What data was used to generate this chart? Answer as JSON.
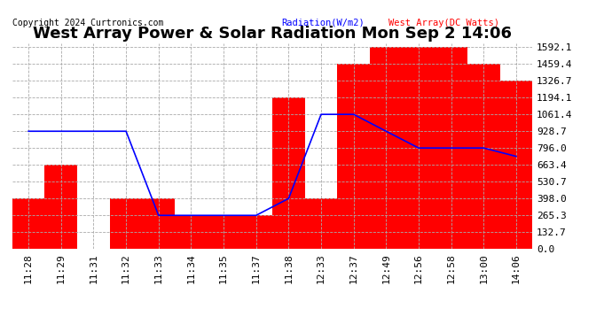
{
  "title": "West Array Power & Solar Radiation Mon Sep 2 14:06",
  "copyright": "Copyright 2024 Curtronics.com",
  "legend_radiation": "Radiation(W/m2)",
  "legend_west": "West Array(DC Watts)",
  "x_labels": [
    "11:28",
    "11:29",
    "11:31",
    "11:32",
    "11:33",
    "11:34",
    "11:35",
    "11:37",
    "11:38",
    "12:33",
    "12:37",
    "12:49",
    "12:56",
    "12:58",
    "13:00",
    "14:06"
  ],
  "bar_values": [
    398,
    663,
    0,
    398,
    398,
    265,
    265,
    265,
    1194,
    398,
    1459,
    1592,
    1592,
    1592,
    1459,
    1326
  ],
  "line_values": [
    928,
    928,
    928,
    928,
    265,
    265,
    265,
    265,
    398,
    1061,
    1061,
    928,
    796,
    796,
    796,
    730
  ],
  "y_ticks": [
    0.0,
    132.7,
    265.3,
    398.0,
    530.7,
    663.4,
    796.0,
    928.7,
    1061.4,
    1194.1,
    1326.7,
    1459.4,
    1592.1
  ],
  "y_max": 1592.1,
  "y_min": 0.0,
  "bar_color": "#ff0000",
  "line_color": "#0000ff",
  "bg_color": "#ffffff",
  "plot_bg_color": "#ffffff",
  "grid_color": "#aaaaaa",
  "grid_color_dashed": "#cccccc",
  "title_color": "#000000",
  "title_fontsize": 13,
  "tick_fontsize": 8,
  "label_color": "#000000",
  "radiation_label_color": "#0000ff",
  "west_label_color": "#ff0000",
  "figwidth": 6.9,
  "figheight": 3.75,
  "dpi": 100
}
